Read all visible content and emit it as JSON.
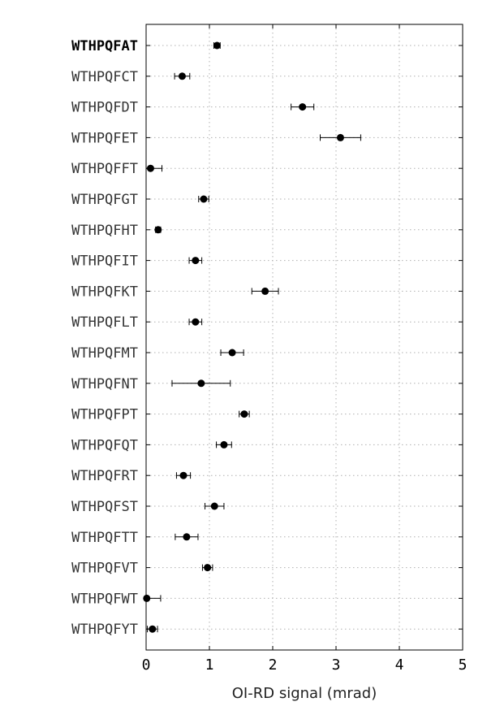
{
  "chart_data": {
    "type": "scatter",
    "orientation": "horizontal-errorbar",
    "xlabel": "OI-RD signal (mrad)",
    "xlim": [
      0,
      5
    ],
    "xticks": [
      0,
      1,
      2,
      3,
      4,
      5
    ],
    "grid": true,
    "highlight": "WTHPQFAT",
    "series": [
      {
        "name": "OI-RD signal",
        "points": [
          {
            "label": "WTHPQFAT",
            "value": 1.12,
            "err_low": 0.05,
            "err_high": 0.05
          },
          {
            "label": "WTHPQFCT",
            "value": 0.57,
            "err_low": 0.12,
            "err_high": 0.12
          },
          {
            "label": "WTHPQFDT",
            "value": 2.47,
            "err_low": 0.18,
            "err_high": 0.18
          },
          {
            "label": "WTHPQFET",
            "value": 3.07,
            "err_low": 0.32,
            "err_high": 0.32
          },
          {
            "label": "WTHPQFFT",
            "value": 0.07,
            "err_low": 0.07,
            "err_high": 0.18
          },
          {
            "label": "WTHPQFGT",
            "value": 0.91,
            "err_low": 0.08,
            "err_high": 0.08
          },
          {
            "label": "WTHPQFHT",
            "value": 0.19,
            "err_low": 0.04,
            "err_high": 0.04
          },
          {
            "label": "WTHPQFIT",
            "value": 0.78,
            "err_low": 0.1,
            "err_high": 0.1
          },
          {
            "label": "WTHPQFKT",
            "value": 1.88,
            "err_low": 0.21,
            "err_high": 0.21
          },
          {
            "label": "WTHPQFLT",
            "value": 0.78,
            "err_low": 0.1,
            "err_high": 0.1
          },
          {
            "label": "WTHPQFMT",
            "value": 1.36,
            "err_low": 0.18,
            "err_high": 0.18
          },
          {
            "label": "WTHPQFNT",
            "value": 0.87,
            "err_low": 0.46,
            "err_high": 0.46
          },
          {
            "label": "WTHPQFPT",
            "value": 1.55,
            "err_low": 0.08,
            "err_high": 0.08
          },
          {
            "label": "WTHPQFQT",
            "value": 1.23,
            "err_low": 0.12,
            "err_high": 0.12
          },
          {
            "label": "WTHPQFRT",
            "value": 0.59,
            "err_low": 0.11,
            "err_high": 0.11
          },
          {
            "label": "WTHPQFST",
            "value": 1.08,
            "err_low": 0.15,
            "err_high": 0.15
          },
          {
            "label": "WTHPQFTT",
            "value": 0.64,
            "err_low": 0.18,
            "err_high": 0.18
          },
          {
            "label": "WTHPQFVT",
            "value": 0.97,
            "err_low": 0.08,
            "err_high": 0.08
          },
          {
            "label": "WTHPQFWT",
            "value": 0.01,
            "err_low": 0.01,
            "err_high": 0.22
          },
          {
            "label": "WTHPQFYT",
            "value": 0.1,
            "err_low": 0.08,
            "err_high": 0.08
          }
        ]
      }
    ]
  }
}
